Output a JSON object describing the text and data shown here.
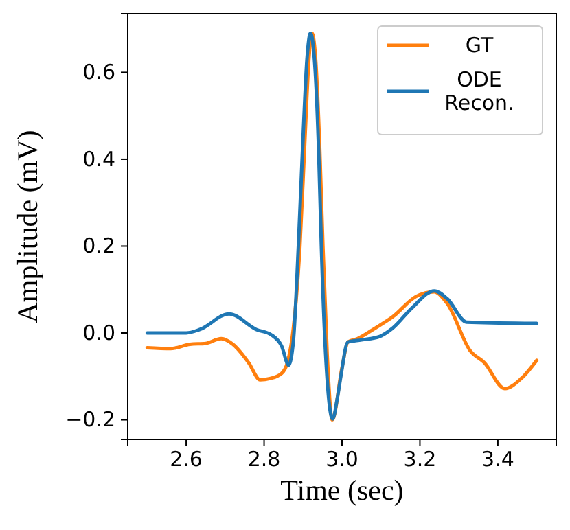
{
  "chart_data": {
    "type": "line",
    "xlabel": "Time (sec)",
    "ylabel": "Amplitude (mV)",
    "xlim": [
      2.45,
      3.55
    ],
    "ylim": [
      -0.245,
      0.735
    ],
    "xticks": [
      {
        "value": 2.6,
        "label": "2.6"
      },
      {
        "value": 2.8,
        "label": "2.8"
      },
      {
        "value": 3.0,
        "label": "3.0"
      },
      {
        "value": 3.2,
        "label": "3.2"
      },
      {
        "value": 3.4,
        "label": "3.4"
      }
    ],
    "yticks": [
      {
        "value": -0.2,
        "label": "−0.2"
      },
      {
        "value": 0,
        "label": "0.0"
      },
      {
        "value": 0.2,
        "label": "0.2"
      },
      {
        "value": 0.4,
        "label": "0.4"
      },
      {
        "value": 0.6,
        "label": "0.6"
      }
    ],
    "legend": "top right",
    "grid": false,
    "marker": "none",
    "line_style": "solid",
    "series": [
      {
        "name": "GT",
        "color": "#ff7f0e",
        "x": [
          2.5,
          2.56,
          2.61,
          2.65,
          2.69,
          2.72,
          2.76,
          2.79,
          2.815,
          2.845,
          2.86,
          2.875,
          2.892,
          2.905,
          2.915,
          2.923,
          2.933,
          2.943,
          2.951,
          2.962,
          2.975,
          3.0,
          3.015,
          3.04,
          3.085,
          3.13,
          3.19,
          3.237,
          3.27,
          3.33,
          3.365,
          3.418,
          3.46,
          3.5
        ],
        "values": [
          -0.034,
          -0.036,
          -0.026,
          -0.024,
          -0.013,
          -0.026,
          -0.068,
          -0.108,
          -0.105,
          -0.093,
          -0.068,
          0.01,
          0.2,
          0.45,
          0.63,
          0.69,
          0.62,
          0.42,
          0.2,
          -0.05,
          -0.2,
          -0.08,
          -0.021,
          -0.013,
          0.011,
          0.037,
          0.084,
          0.095,
          0.068,
          -0.042,
          -0.068,
          -0.128,
          -0.105,
          -0.063
        ]
      },
      {
        "name": "ODE Recon.",
        "color": "#1f77b4",
        "x": [
          2.5,
          2.6,
          2.635,
          2.71,
          2.78,
          2.82,
          2.845,
          2.863,
          2.875,
          2.888,
          2.9,
          2.91,
          2.919,
          2.93,
          2.94,
          2.947,
          2.958,
          2.976,
          2.988,
          2.997,
          3.015,
          3.05,
          3.097,
          3.13,
          3.18,
          3.237,
          3.27,
          3.32,
          3.5
        ],
        "values": [
          0,
          0,
          0.008,
          0.044,
          0.008,
          -0.005,
          -0.03,
          -0.074,
          -0.02,
          0.2,
          0.45,
          0.63,
          0.69,
          0.62,
          0.42,
          0.2,
          -0.05,
          -0.198,
          -0.15,
          -0.1,
          -0.021,
          -0.016,
          -0.008,
          0.011,
          0.058,
          0.097,
          0.079,
          0.025,
          0.022
        ]
      }
    ]
  }
}
